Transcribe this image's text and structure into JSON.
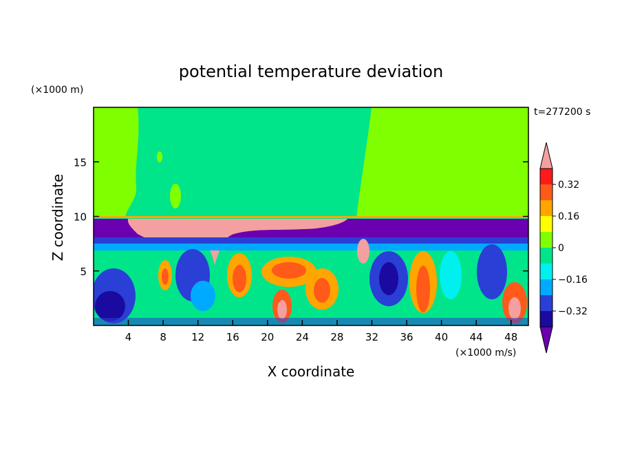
{
  "chart_data": {
    "type": "heatmap",
    "title": "potential temperature deviation",
    "xlabel": "X coordinate",
    "ylabel": "Z coordinate",
    "x_unit": "(×1000 m/s)",
    "y_unit": "(×1000 m)",
    "time_label": "t=277200 s",
    "xlim": [
      0,
      50
    ],
    "ylim": [
      0,
      20
    ],
    "x_ticks": [
      4,
      8,
      12,
      16,
      20,
      24,
      28,
      32,
      36,
      40,
      44,
      48
    ],
    "y_ticks": [
      5,
      10,
      15
    ],
    "grid": false,
    "colorbar": {
      "levels": [
        -0.4,
        -0.32,
        -0.24,
        -0.16,
        -0.08,
        0,
        0.08,
        0.16,
        0.24,
        0.32,
        0.4
      ],
      "tick_labels": [
        "0.32",
        "0.16",
        "0",
        "−0.16",
        "−0.32"
      ],
      "tick_values": [
        0.32,
        0.16,
        0,
        -0.16,
        -0.32
      ],
      "colors_low_to_high": [
        "#1a0aa0",
        "#2a3fd6",
        "#00aaff",
        "#00f0f0",
        "#00e58a",
        "#80ff00",
        "#ffff00",
        "#ffa500",
        "#ff5a1a",
        "#ff1a1a"
      ],
      "under_color": "#6a00b0",
      "over_color": "#f4a0a0"
    },
    "regions": [
      {
        "name": "upper layer above z=10",
        "value": 0.04,
        "note": "light green/teal, mostly near zero"
      },
      {
        "name": "warm band near z=9-10 from x=13 to x=30",
        "value": 0.45
      },
      {
        "name": "cold band near z=9-10 from x=30 to x=50",
        "value": -0.45
      },
      {
        "name": "turbulent lower layer z<8",
        "value_range": [
          -0.45,
          0.45
        ]
      }
    ]
  }
}
